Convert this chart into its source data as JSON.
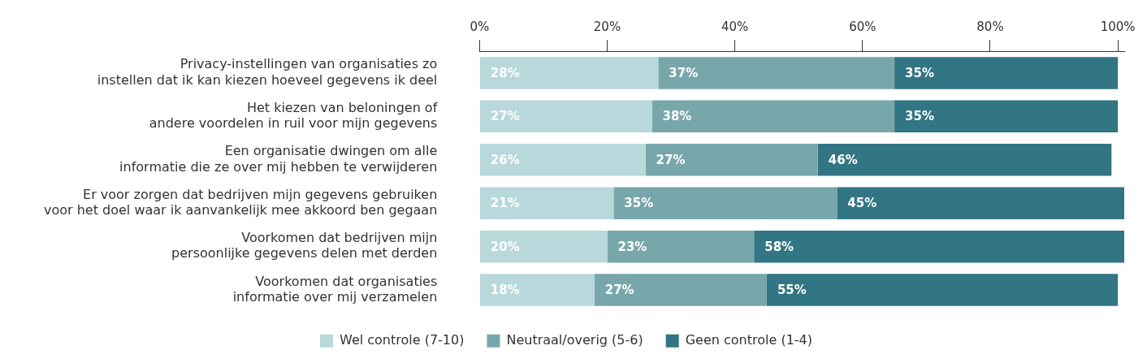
{
  "chart_data": {
    "type": "bar",
    "orientation": "horizontal",
    "stacked": true,
    "categories": [
      "Privacy-instellingen van organisaties zo\ninstellen dat ik kan kiezen hoeveel gegevens ik deel",
      "Het kiezen van beloningen of\nandere voordelen in ruil voor mijn gegevens",
      "Een organisatie dwingen om alle\ninformatie die ze over mij hebben te verwijderen",
      "Er voor zorgen dat bedrijven mijn gegevens gebruiken\nvoor het doel waar ik aanvankelijk mee akkoord ben gegaan",
      "Voorkomen dat bedrijven mijn\npersoonlijke gegevens delen met derden",
      "Voorkomen dat organisaties\ninformatie over mij verzamelen"
    ],
    "series": [
      {
        "name": "Wel controle (7-10)",
        "color": "#b8d8dc",
        "values": [
          28,
          27,
          26,
          21,
          20,
          18
        ],
        "value_labels": [
          "28%",
          "27%",
          "26%",
          "21%",
          "20%",
          "18%"
        ]
      },
      {
        "name": "Neutraal/overig (5-6)",
        "color": "#78a7ab",
        "values": [
          37,
          38,
          27,
          35,
          23,
          27
        ],
        "value_labels": [
          "37%",
          "38%",
          "27%",
          "35%",
          "23%",
          "27%"
        ]
      },
      {
        "name": "Geen controle (1-4)",
        "color": "#327584",
        "values": [
          35,
          35,
          46,
          45,
          58,
          55
        ],
        "value_labels": [
          "35%",
          "35%",
          "46%",
          "45%",
          "58%",
          "55%"
        ]
      }
    ],
    "xlim": [
      0,
      101
    ],
    "xticks": [
      {
        "value": 0,
        "label": "0%"
      },
      {
        "value": 20,
        "label": "20%"
      },
      {
        "value": 40,
        "label": "40%"
      },
      {
        "value": 60,
        "label": "60%"
      },
      {
        "value": 80,
        "label": "80%"
      },
      {
        "value": 100,
        "label": "100%"
      }
    ],
    "grid": false,
    "legend": "bottom"
  }
}
